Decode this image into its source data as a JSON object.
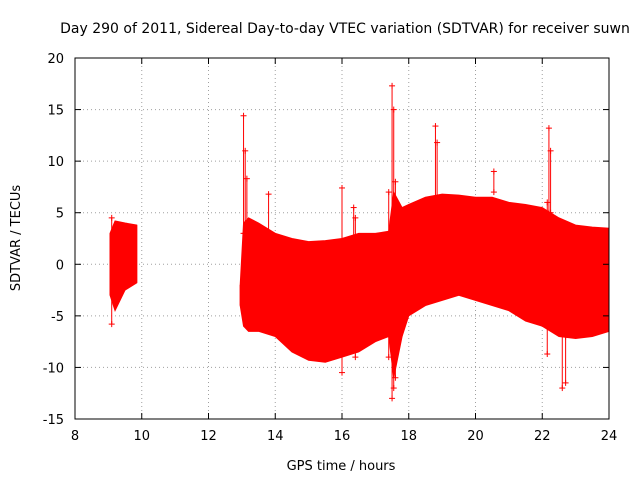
{
  "chart_data": {
    "type": "scatter",
    "title": "Day 290 of 2011, Sidereal Day-to-day VTEC variation (SDTVAR) for receiver suwn",
    "xlabel": "GPS time / hours",
    "ylabel": "SDTVAR / TECUs",
    "xlim": [
      8,
      24
    ],
    "ylim": [
      -15,
      20
    ],
    "grid": true,
    "x_ticks": [
      "8",
      "10",
      "12",
      "14",
      "16",
      "18",
      "20",
      "22",
      "24"
    ],
    "y_ticks": [
      "-15",
      "-10",
      "-5",
      "0",
      "5",
      "10",
      "15",
      "20"
    ],
    "series_color": "#ff0000",
    "series": [
      {
        "name": "SDTVAR",
        "marker": "plus",
        "envelope": [
          {
            "x": 9.05,
            "upper": 3.0,
            "lower": -3.0
          },
          {
            "x": 9.2,
            "upper": 4.2,
            "lower": -4.5
          },
          {
            "x": 9.5,
            "upper": 4.0,
            "lower": -2.5
          },
          {
            "x": 9.85,
            "upper": 3.8,
            "lower": -1.8
          },
          {
            "x": 12.95,
            "upper": -2.0,
            "lower": -4.0
          },
          {
            "x": 13.05,
            "upper": 4.0,
            "lower": -6.0
          },
          {
            "x": 13.2,
            "upper": 4.5,
            "lower": -6.5
          },
          {
            "x": 13.5,
            "upper": 4.0,
            "lower": -6.5
          },
          {
            "x": 14.0,
            "upper": 3.0,
            "lower": -7.0
          },
          {
            "x": 14.5,
            "upper": 2.5,
            "lower": -8.5
          },
          {
            "x": 15.0,
            "upper": 2.2,
            "lower": -9.3
          },
          {
            "x": 15.5,
            "upper": 2.3,
            "lower": -9.5
          },
          {
            "x": 16.0,
            "upper": 2.5,
            "lower": -9.0
          },
          {
            "x": 16.5,
            "upper": 3.0,
            "lower": -8.5
          },
          {
            "x": 17.0,
            "upper": 3.0,
            "lower": -7.5
          },
          {
            "x": 17.4,
            "upper": 3.2,
            "lower": -7.0
          },
          {
            "x": 17.55,
            "upper": 7.0,
            "lower": -11.0
          },
          {
            "x": 17.8,
            "upper": 5.5,
            "lower": -7.0
          },
          {
            "x": 18.0,
            "upper": 5.8,
            "lower": -5.0
          },
          {
            "x": 18.5,
            "upper": 6.5,
            "lower": -4.0
          },
          {
            "x": 19.0,
            "upper": 6.8,
            "lower": -3.5
          },
          {
            "x": 19.5,
            "upper": 6.7,
            "lower": -3.0
          },
          {
            "x": 20.0,
            "upper": 6.5,
            "lower": -3.5
          },
          {
            "x": 20.5,
            "upper": 6.5,
            "lower": -4.0
          },
          {
            "x": 21.0,
            "upper": 6.0,
            "lower": -4.5
          },
          {
            "x": 21.5,
            "upper": 5.8,
            "lower": -5.5
          },
          {
            "x": 22.0,
            "upper": 5.5,
            "lower": -6.0
          },
          {
            "x": 22.5,
            "upper": 4.5,
            "lower": -7.0
          },
          {
            "x": 23.0,
            "upper": 3.8,
            "lower": -7.2
          },
          {
            "x": 23.5,
            "upper": 3.6,
            "lower": -7.0
          },
          {
            "x": 24.0,
            "upper": 3.5,
            "lower": -6.5
          }
        ],
        "spikes": [
          {
            "x": 9.1,
            "lower": -5.8,
            "upper": 4.5
          },
          {
            "x": 13.05,
            "lower": 3.0,
            "upper": 14.4
          },
          {
            "x": 13.1,
            "lower": 3.0,
            "upper": 11.0
          },
          {
            "x": 13.15,
            "lower": 3.0,
            "upper": 8.3
          },
          {
            "x": 13.8,
            "lower": 3.0,
            "upper": 6.8
          },
          {
            "x": 16.0,
            "lower": -10.5,
            "upper": 7.4
          },
          {
            "x": 16.35,
            "lower": 2.0,
            "upper": 5.5
          },
          {
            "x": 16.4,
            "lower": -9.0,
            "upper": 4.5
          },
          {
            "x": 17.4,
            "lower": -9.0,
            "upper": 7.0
          },
          {
            "x": 17.5,
            "lower": -13.0,
            "upper": 17.3
          },
          {
            "x": 17.55,
            "lower": -12.0,
            "upper": 15.0
          },
          {
            "x": 17.6,
            "lower": -11.0,
            "upper": 8.0
          },
          {
            "x": 18.8,
            "lower": 5.0,
            "upper": 13.4
          },
          {
            "x": 18.85,
            "lower": 5.0,
            "upper": 11.8
          },
          {
            "x": 20.55,
            "lower": 7.0,
            "upper": 9.0
          },
          {
            "x": 22.15,
            "lower": -8.7,
            "upper": 6.0
          },
          {
            "x": 22.2,
            "lower": 5.0,
            "upper": 13.2
          },
          {
            "x": 22.25,
            "lower": 5.0,
            "upper": 11.0
          },
          {
            "x": 22.6,
            "lower": -12.0,
            "upper": -6.0
          },
          {
            "x": 22.7,
            "lower": -11.5,
            "upper": -7.0
          }
        ]
      }
    ]
  }
}
